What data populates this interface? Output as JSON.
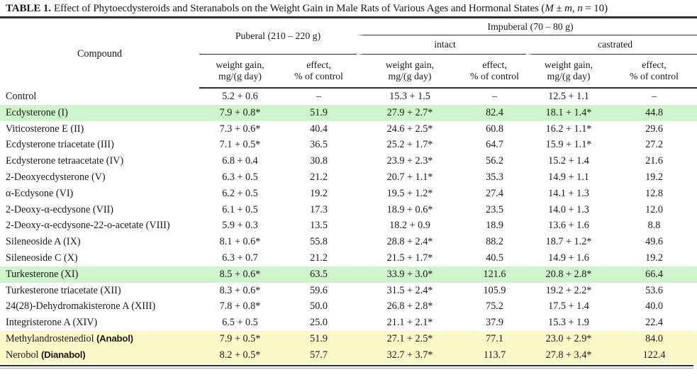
{
  "title": {
    "tag": "TABLE 1.",
    "body": "Effect of Phytoecdysteroids and Steranabols on the Weight Gain in Male Rats of Various Ages and Hormonal States (",
    "var_M": "M",
    "pm": " ± ",
    "var_m": "m",
    "comma": ", ",
    "var_n": "n",
    "end": " = 10)"
  },
  "table": {
    "header": {
      "compound": "Compound",
      "puberal": "Puberal (210 – 220 g)",
      "impuberal": "Impuberal (70 – 80 g)",
      "intact": "intact",
      "castrated": "castrated",
      "weight_gain_l1": "weight gain,",
      "weight_gain_l2": "mg/(g day)",
      "effect_l1": "effect,",
      "effect_l2": "% of control"
    },
    "rows": [
      {
        "name": "Control",
        "brand": "",
        "highlight": "none",
        "values": [
          "5.2 + 0.6",
          "–",
          "15.3 + 1.5",
          "–",
          "12.5 + 1.1",
          "–"
        ]
      },
      {
        "name": "Ecdysterone (I)",
        "brand": "",
        "highlight": "green",
        "values": [
          "7.9 + 0.8*",
          "51.9",
          "27.9 + 2.7*",
          "82.4",
          "18.1 + 1.4*",
          "44.8"
        ]
      },
      {
        "name": "Viticosterone E (II)",
        "brand": "",
        "highlight": "none",
        "values": [
          "7.3 + 0.6*",
          "40.4",
          "24.6 + 2.5*",
          "60.8",
          "16.2 + 1.1*",
          "29.6"
        ]
      },
      {
        "name": "Ecdysterone triacetate (III)",
        "brand": "",
        "highlight": "none",
        "values": [
          "7.1 + 0.5*",
          "36.5",
          "25.2 + 1.7*",
          "64.7",
          "15.9 + 1.1*",
          "27.2"
        ]
      },
      {
        "name": "Ecdysterone tetraacetate (IV)",
        "brand": "",
        "highlight": "none",
        "values": [
          "6.8 + 0.4",
          "30.8",
          "23.9 + 2.3*",
          "56.2",
          "15.2 + 1.4",
          "21.6"
        ]
      },
      {
        "name": "2-Deoxyecdysterone (V)",
        "brand": "",
        "highlight": "none",
        "values": [
          "6.3 + 0.5",
          "21.2",
          "20.7 + 1.1*",
          "35.3",
          "14.9 + 1.1",
          "19.2"
        ]
      },
      {
        "name": "α-Ecdysone (VI)",
        "brand": "",
        "highlight": "none",
        "values": [
          "6.2 + 0.5",
          "19.2",
          "19.5 + 1.2*",
          "27.4",
          "14.1 + 1.3",
          "12.8"
        ]
      },
      {
        "name": "2-Deoxy-α-ecdysone (VII)",
        "brand": "",
        "highlight": "none",
        "values": [
          "6.1 + 0.5",
          "17.3",
          "18.9 + 0.6*",
          "23.5",
          "14.0 + 1.3",
          "12.0"
        ]
      },
      {
        "name": "2-Deoxy-α-ecdysone-22-o-acetate (VIII)",
        "brand": "",
        "highlight": "none",
        "values": [
          "5.9 + 0.3",
          "13.5",
          "18.2 + 0.9",
          "18.9",
          "13.6 + 1.6",
          "8.8"
        ]
      },
      {
        "name": "Sileneoside A (IX)",
        "brand": "",
        "highlight": "none",
        "values": [
          "8.1 + 0.6*",
          "55.8",
          "28.8 + 2.4*",
          "88.2",
          "18.7 + 1.2*",
          "49.6"
        ]
      },
      {
        "name": "Sileneoside C (X)",
        "brand": "",
        "highlight": "none",
        "values": [
          "6.3 + 0.7",
          "21.2",
          "21.5 + 1.7*",
          "40.5",
          "14.9 + 1.6",
          "19.2"
        ]
      },
      {
        "name": "Turkesterone (XI)",
        "brand": "",
        "highlight": "green",
        "values": [
          "8.5 + 0.6*",
          "63.5",
          "33.9 + 3.0*",
          "121.6",
          "20.8 + 2.8*",
          "66.4"
        ]
      },
      {
        "name": "Turkesterone triacetate (XII)",
        "brand": "",
        "highlight": "none",
        "values": [
          "8.3 + 0.6*",
          "59.6",
          "31.5 + 2.4*",
          "105.9",
          "19.2 + 2.2*",
          "53.6"
        ]
      },
      {
        "name": "24(28)-Dehydromakisterone A (XIII)",
        "brand": "",
        "highlight": "none",
        "values": [
          "7.8 + 0.8*",
          "50.0",
          "26.8 + 2.8*",
          "75.2",
          "17.5 + 1.4",
          "40.0"
        ]
      },
      {
        "name": "Integristerone A (XIV)",
        "brand": "",
        "highlight": "none",
        "values": [
          "6.5 + 0.5",
          "25.0",
          "21.1 + 2.1*",
          "37.9",
          "15.3 + 1.9",
          "22.4"
        ]
      },
      {
        "name": "Methylandrostenediol",
        "brand": "(Anabol)",
        "highlight": "yellow",
        "values": [
          "7.9 + 0.5*",
          "51.9",
          "27.1 + 2.5*",
          "77.1",
          "23.0 + 2.9*",
          "84.0"
        ]
      },
      {
        "name": "Nerobol",
        "brand": "(Dianabol)",
        "highlight": "yellow",
        "values": [
          "8.2 + 0.5*",
          "57.7",
          "32.7 + 3.7*",
          "113.7",
          "27.8 + 3.4*",
          "122.4"
        ]
      }
    ]
  },
  "colors": {
    "highlight_green": "#cdf4cb",
    "highlight_yellow": "#fafac8",
    "rule": "#2f2f2f",
    "rule_light": "#9a9a9a",
    "text": "#1a1a1a",
    "paper": "#ffffff"
  }
}
